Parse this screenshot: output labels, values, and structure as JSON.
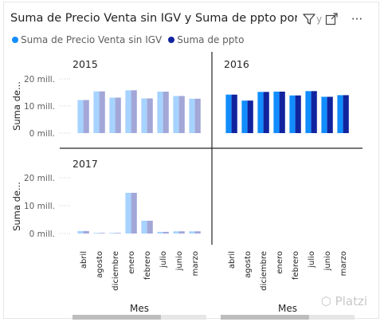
{
  "header": {
    "title": "Suma de Precio Venta sin IGV y Suma de ppto por Mes",
    "title_clip": "y",
    "icons": [
      "filter-icon",
      "focus-mode-icon",
      "more-options-icon"
    ],
    "more_label": "···"
  },
  "legend": [
    {
      "label": "Suma de Precio Venta sin IGV",
      "color": "#118dff"
    },
    {
      "label": "Suma de ppto",
      "color": "#12239e"
    }
  ],
  "axis": {
    "y_label": "Suma de...",
    "x_label": "Mes",
    "y_ticks": [
      "0 mill.",
      "10 mill.",
      "20 mill."
    ]
  },
  "watermark": "Platzi",
  "chart_data": [
    {
      "type": "bar",
      "title": "2015",
      "categories": [
        "abril",
        "agosto",
        "diciembre",
        "enero",
        "febrero",
        "julio",
        "junio",
        "marzo"
      ],
      "series": [
        {
          "name": "Suma de Precio Venta sin IGV",
          "values": [
            12.2,
            15.4,
            13.1,
            15.8,
            12.8,
            15.3,
            13.7,
            12.7
          ]
        },
        {
          "name": "Suma de ppto",
          "values": [
            12.2,
            15.4,
            13.1,
            15.8,
            12.8,
            15.3,
            13.7,
            12.7
          ]
        }
      ],
      "ylim": [
        0,
        20
      ],
      "faded": true
    },
    {
      "type": "bar",
      "title": "2016",
      "categories": [
        "abril",
        "agosto",
        "diciembre",
        "enero",
        "febrero",
        "julio",
        "junio",
        "marzo"
      ],
      "series": [
        {
          "name": "Suma de Precio Venta sin IGV",
          "values": [
            14.2,
            12.0,
            15.2,
            15.3,
            13.9,
            15.5,
            13.4,
            14.0
          ]
        },
        {
          "name": "Suma de ppto",
          "values": [
            14.2,
            12.0,
            15.2,
            15.3,
            13.9,
            15.5,
            13.4,
            14.0
          ]
        }
      ],
      "ylim": [
        0,
        20
      ],
      "faded": false
    },
    {
      "type": "bar",
      "title": "2017",
      "categories": [
        "abril",
        "agosto",
        "diciembre",
        "enero",
        "febrero",
        "julio",
        "junio",
        "marzo"
      ],
      "series": [
        {
          "name": "Suma de Precio Venta sin IGV",
          "values": [
            0.9,
            0,
            0,
            14.6,
            4.6,
            0.6,
            0.8,
            0.8
          ]
        },
        {
          "name": "Suma de ppto",
          "values": [
            0.9,
            0,
            0,
            14.6,
            4.6,
            0.6,
            0.8,
            0.8
          ]
        }
      ],
      "ylim": [
        0,
        20
      ],
      "faded": true
    }
  ]
}
